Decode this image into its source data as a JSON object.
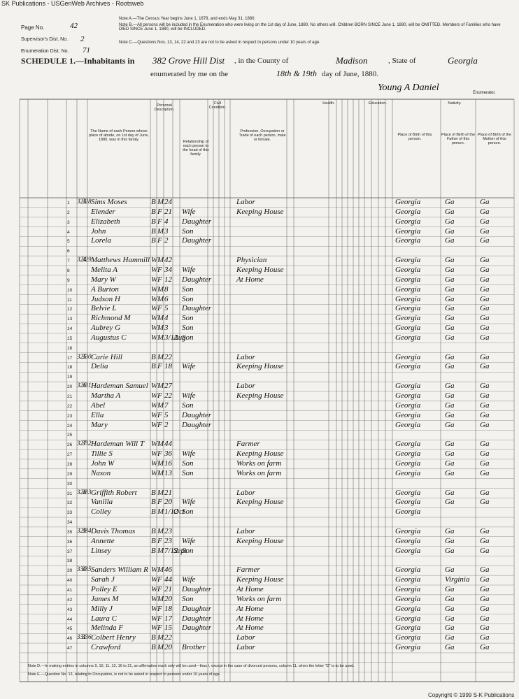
{
  "watermark": "SK Publications - USGenWeb Archives - Rootsweb",
  "header": {
    "page_label": "Page No.",
    "page_no": "42",
    "supervisor_label": "Supervisor's Dist. No.",
    "supervisor_no": "2",
    "enumeration_label": "Enumeration Dist. No.",
    "enumeration_no": "71",
    "note_a": "Note A.—The Census Year begins June 1, 1879, and ends May 31, 1880.",
    "note_b": "Note B.—All persons will be included in the Enumeration who were living on the 1st day of June, 1880. No others will. Children BORN SINCE June 1, 1880, will be OMITTED. Members of Families who have DIED SINCE June 1, 1880, will be INCLUDED.",
    "note_c": "Note C.—Questions Nos. 13, 14, 22 and 23 are not to be asked in respect to persons under 10 years of age.",
    "schedule": "SCHEDULE 1.—Inhabitants in",
    "district": "382 Grove Hill Dist",
    "county_label": ", in the County of",
    "county": "Madison",
    "state_label": ", State of",
    "state": "Georgia",
    "enumerated_label": "enumerated by me on the",
    "day": "18th & 19th",
    "day_label": "day of June, 1880.",
    "enumerator": "Young A Daniel",
    "enumerator_label": "Enumerator."
  },
  "columns": {
    "name": "The Name of each Person whose place of abode, on 1st day of June, 1880, was in this family.",
    "personal": "Personal Description.",
    "relationship": "Relationship of each person to the head of this family.",
    "civil": "Civil Condition.",
    "occupation": "Profession, Occupation or Trade of each person, male or female.",
    "health": "Health.",
    "education": "Education.",
    "nativity": "Nativity.",
    "birthplace": "Place of Birth of this person.",
    "father": "Place of Birth of the Father of this person.",
    "mother": "Place of Birth of the Mother of this person."
  },
  "rows": [
    {
      "line": 1,
      "dwelling": "323",
      "family": "328",
      "name": "Sims Moses",
      "color": "B",
      "sex": "M",
      "age": "24",
      "occupation": "Labor",
      "birthplace": "Georgia",
      "father": "Ga",
      "mother": "Ga"
    },
    {
      "line": 2,
      "name": "Elender",
      "color": "B",
      "sex": "F",
      "age": "21",
      "relationship": "Wife",
      "occupation": "Keeping House",
      "birthplace": "Georgia",
      "father": "Ga",
      "mother": "Ga"
    },
    {
      "line": 3,
      "name": "Elizabeth",
      "color": "B",
      "sex": "F",
      "age": "4",
      "relationship": "Daughter",
      "birthplace": "Georgia",
      "father": "Ga",
      "mother": "Ga"
    },
    {
      "line": 4,
      "name": "John",
      "color": "B",
      "sex": "M",
      "age": "3",
      "relationship": "Son",
      "birthplace": "Georgia",
      "father": "Ga",
      "mother": "Ga"
    },
    {
      "line": 5,
      "name": "Lorela",
      "color": "B",
      "sex": "F",
      "age": "2",
      "relationship": "Daughter",
      "birthplace": "Georgia",
      "father": "Ga",
      "mother": "Ga"
    },
    {
      "line": 6
    },
    {
      "line": 7,
      "dwelling": "324",
      "family": "329",
      "name": "Matthews Hammill",
      "color": "W",
      "sex": "M",
      "age": "42",
      "occupation": "Physician",
      "birthplace": "Georgia",
      "father": "Ga",
      "mother": "Ga"
    },
    {
      "line": 8,
      "name": "Melita A",
      "color": "W",
      "sex": "F",
      "age": "34",
      "relationship": "Wife",
      "occupation": "Keeping House",
      "birthplace": "Georgia",
      "father": "Ga",
      "mother": "Ga"
    },
    {
      "line": 9,
      "name": "Mary W",
      "color": "W",
      "sex": "F",
      "age": "12",
      "relationship": "Daughter",
      "occupation": "At Home",
      "birthplace": "Georgia",
      "father": "Ga",
      "mother": "Ga"
    },
    {
      "line": 10,
      "name": "A Burton",
      "color": "W",
      "sex": "M",
      "age": "8",
      "relationship": "Son",
      "birthplace": "Georgia",
      "father": "Ga",
      "mother": "Ga"
    },
    {
      "line": 11,
      "name": "Judson H",
      "color": "W",
      "sex": "M",
      "age": "6",
      "relationship": "Son",
      "birthplace": "Georgia",
      "father": "Ga",
      "mother": "Ga"
    },
    {
      "line": 12,
      "name": "Belvie L",
      "color": "W",
      "sex": "F",
      "age": "5",
      "relationship": "Daughter",
      "birthplace": "Georgia",
      "father": "Ga",
      "mother": "Ga"
    },
    {
      "line": 13,
      "name": "Richmond M",
      "color": "W",
      "sex": "M",
      "age": "4",
      "relationship": "Son",
      "birthplace": "Georgia",
      "father": "Ga",
      "mother": "Ga"
    },
    {
      "line": 14,
      "name": "Aubrey G",
      "color": "W",
      "sex": "M",
      "age": "3",
      "relationship": "Son",
      "birthplace": "Georgia",
      "father": "Ga",
      "mother": "Ga"
    },
    {
      "line": 15,
      "name": "Augustus C",
      "color": "W",
      "sex": "M",
      "age": "3/12",
      "month": "Aug",
      "relationship": "Son",
      "birthplace": "Georgia",
      "father": "Ga",
      "mother": "Ga"
    },
    {
      "line": 16
    },
    {
      "line": 17,
      "dwelling": "325",
      "family": "330",
      "name": "Carie Hill",
      "color": "B",
      "sex": "M",
      "age": "22",
      "occupation": "Labor",
      "birthplace": "Georgia",
      "father": "Ga",
      "mother": "Ga"
    },
    {
      "line": 18,
      "name": "Delia",
      "color": "B",
      "sex": "F",
      "age": "18",
      "relationship": "Wife",
      "occupation": "Keeping House",
      "birthplace": "Georgia",
      "father": "Ga",
      "mother": "Ga"
    },
    {
      "line": 19
    },
    {
      "line": 20,
      "dwelling": "326",
      "family": "331",
      "name": "Hardeman Samuel",
      "color": "W",
      "sex": "M",
      "age": "27",
      "occupation": "Labor",
      "birthplace": "Georgia",
      "father": "Ga",
      "mother": "Ga"
    },
    {
      "line": 21,
      "name": "Martha A",
      "color": "W",
      "sex": "F",
      "age": "22",
      "relationship": "Wife",
      "occupation": "Keeping House",
      "birthplace": "Georgia",
      "father": "Ga",
      "mother": "Ga"
    },
    {
      "line": 22,
      "name": "Abel",
      "color": "W",
      "sex": "M",
      "age": "7",
      "relationship": "Son",
      "birthplace": "Georgia",
      "father": "Ga",
      "mother": "Ga"
    },
    {
      "line": 23,
      "name": "Ella",
      "color": "W",
      "sex": "F",
      "age": "5",
      "relationship": "Daughter",
      "birthplace": "Georgia",
      "father": "Ga",
      "mother": "Ga"
    },
    {
      "line": 24,
      "name": "Mary",
      "color": "W",
      "sex": "F",
      "age": "2",
      "relationship": "Daughter",
      "birthplace": "Georgia",
      "father": "Ga",
      "mother": "Ga"
    },
    {
      "line": 25
    },
    {
      "line": 26,
      "dwelling": "327",
      "family": "332",
      "name": "Hardeman Will T",
      "color": "W",
      "sex": "M",
      "age": "44",
      "occupation": "Farmer",
      "birthplace": "Georgia",
      "father": "Ga",
      "mother": "Ga"
    },
    {
      "line": 27,
      "name": "Tillie S",
      "color": "W",
      "sex": "F",
      "age": "36",
      "relationship": "Wife",
      "occupation": "Keeping House",
      "birthplace": "Georgia",
      "father": "Ga",
      "mother": "Ga"
    },
    {
      "line": 28,
      "name": "John W",
      "color": "W",
      "sex": "M",
      "age": "16",
      "relationship": "Son",
      "occupation": "Works on farm",
      "birthplace": "Georgia",
      "father": "Ga",
      "mother": "Ga"
    },
    {
      "line": 29,
      "name": "Nason",
      "color": "W",
      "sex": "M",
      "age": "13",
      "relationship": "Son",
      "occupation": "Works on farm",
      "birthplace": "Georgia",
      "father": "Ga",
      "mother": "Ga"
    },
    {
      "line": 30
    },
    {
      "line": 31,
      "dwelling": "328",
      "family": "333",
      "name": "Griffith Robert",
      "color": "B",
      "sex": "M",
      "age": "21",
      "occupation": "Labor",
      "birthplace": "Georgia",
      "father": "Ga",
      "mother": "Ga"
    },
    {
      "line": 32,
      "name": "Vanilla",
      "color": "B",
      "sex": "F",
      "age": "20",
      "relationship": "Wife",
      "occupation": "Keeping House",
      "birthplace": "Georgia",
      "father": "Ga",
      "mother": "Ga"
    },
    {
      "line": 33,
      "name": "Colley",
      "color": "B",
      "sex": "M",
      "age": "1/12",
      "month": "Oct",
      "relationship": "Son",
      "birthplace": "Georgia"
    },
    {
      "line": 34
    },
    {
      "line": 35,
      "dwelling": "329",
      "family": "334",
      "name": "Davis Thomas",
      "color": "B",
      "sex": "M",
      "age": "23",
      "occupation": "Labor",
      "birthplace": "Georgia",
      "father": "Ga",
      "mother": "Ga"
    },
    {
      "line": 36,
      "name": "Annette",
      "color": "B",
      "sex": "F",
      "age": "23",
      "relationship": "Wife",
      "occupation": "Keeping House",
      "birthplace": "Georgia",
      "father": "Ga",
      "mother": "Ga"
    },
    {
      "line": 37,
      "name": "Linsey",
      "color": "B",
      "sex": "M",
      "age": "7/12",
      "month": "Sept",
      "relationship": "Son",
      "birthplace": "Georgia",
      "father": "Ga",
      "mother": "Ga"
    },
    {
      "line": 38
    },
    {
      "line": 39,
      "dwelling": "330",
      "family": "335",
      "name": "Sanders William R",
      "color": "W",
      "sex": "M",
      "age": "46",
      "occupation": "Farmer",
      "birthplace": "Georgia",
      "father": "Ga",
      "mother": "Ga"
    },
    {
      "line": 40,
      "name": "Sarah J",
      "color": "W",
      "sex": "F",
      "age": "44",
      "relationship": "Wife",
      "occupation": "Keeping House",
      "birthplace": "Georgia",
      "father": "Virginia",
      "mother": "Ga"
    },
    {
      "line": 41,
      "name": "Polley E",
      "color": "W",
      "sex": "F",
      "age": "21",
      "relationship": "Daughter",
      "occupation": "At Home",
      "birthplace": "Georgia",
      "father": "Ga",
      "mother": "Ga"
    },
    {
      "line": 42,
      "name": "James M",
      "color": "W",
      "sex": "M",
      "age": "20",
      "relationship": "Son",
      "occupation": "Works on farm",
      "birthplace": "Georgia",
      "father": "Ga",
      "mother": "Ga"
    },
    {
      "line": 43,
      "name": "Milly J",
      "color": "W",
      "sex": "F",
      "age": "18",
      "relationship": "Daughter",
      "occupation": "At Home",
      "birthplace": "Georgia",
      "father": "Ga",
      "mother": "Ga"
    },
    {
      "line": 44,
      "name": "Laura C",
      "color": "W",
      "sex": "F",
      "age": "17",
      "relationship": "Daughter",
      "occupation": "At Home",
      "birthplace": "Georgia",
      "father": "Ga",
      "mother": "Ga"
    },
    {
      "line": 45,
      "name": "Melinda F",
      "color": "W",
      "sex": "F",
      "age": "15",
      "relationship": "Daughter",
      "occupation": "At Home",
      "birthplace": "Georgia",
      "father": "Ga",
      "mother": "Ga"
    },
    {
      "line": 46,
      "dwelling": "331",
      "family": "336",
      "name": "Colbert Henry",
      "color": "B",
      "sex": "M",
      "age": "22",
      "occupation": "Labor",
      "birthplace": "Georgia",
      "father": "Ga",
      "mother": "Ga"
    },
    {
      "line": 47,
      "name": "Crawford",
      "color": "B",
      "sex": "M",
      "age": "20",
      "relationship": "Brother",
      "occupation": "Labor",
      "birthplace": "Georgia",
      "father": "Ga",
      "mother": "Ga"
    }
  ],
  "footer": {
    "note_d": "Note D.—In making entries in columns 9, 10, 11, 12, 16 to 21, an affirmative mark only will be used—thus /, except in the case of divorced persons, column 11, when the letter \"D\" is to be used.",
    "note_e": "Note E.—Question No. 13, relating to Occupation, is not to be asked in respect to persons under 10 years of age.",
    "copyright": "Copyright © 1999 S-K Publications"
  }
}
